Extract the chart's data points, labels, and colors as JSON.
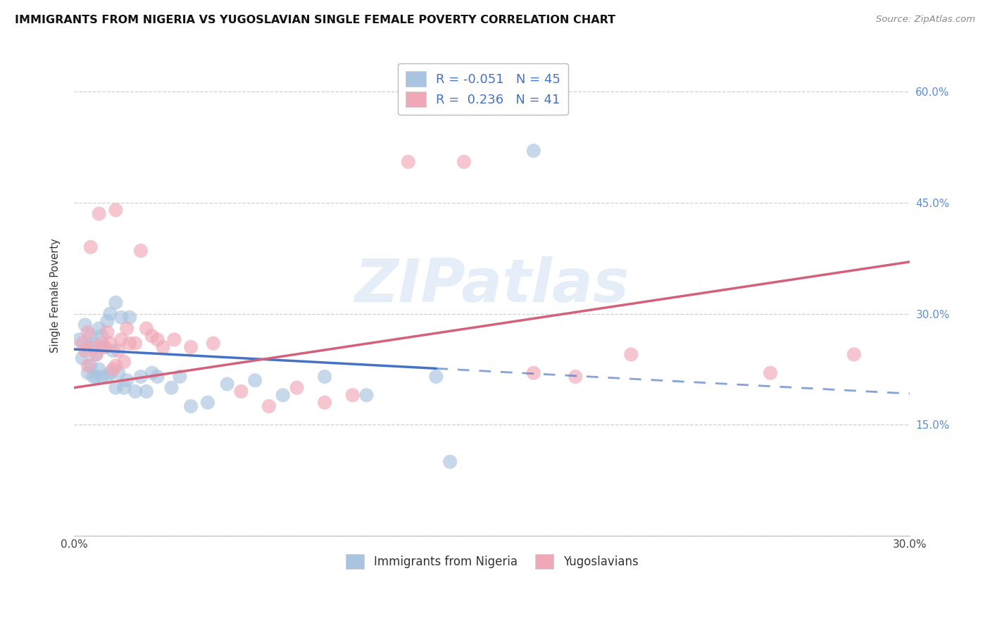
{
  "title": "IMMIGRANTS FROM NIGERIA VS YUGOSLAVIAN SINGLE FEMALE POVERTY CORRELATION CHART",
  "source": "Source: ZipAtlas.com",
  "ylabel": "Single Female Poverty",
  "xlim": [
    0.0,
    0.3
  ],
  "ylim": [
    0.0,
    0.65
  ],
  "xtick_positions": [
    0.0,
    0.05,
    0.1,
    0.15,
    0.2,
    0.25,
    0.3
  ],
  "xtick_labels": [
    "0.0%",
    "",
    "",
    "",
    "",
    "",
    "30.0%"
  ],
  "yticks_right": [
    0.15,
    0.3,
    0.45,
    0.6
  ],
  "ytick_labels_right": [
    "15.0%",
    "30.0%",
    "45.0%",
    "60.0%"
  ],
  "watermark": "ZIPatlas",
  "nigeria_color": "#a8c4e0",
  "yugoslavia_color": "#f0a8b8",
  "nigeria_line_color": "#4472c4",
  "yugoslavia_line_color": "#d4607a",
  "legend_color": "#4472c4",
  "background_color": "#ffffff",
  "grid_color": "#d0d0d0",
  "nigeria_scatter_x": [
    0.002,
    0.003,
    0.004,
    0.005,
    0.005,
    0.006,
    0.006,
    0.007,
    0.007,
    0.008,
    0.008,
    0.009,
    0.009,
    0.01,
    0.01,
    0.011,
    0.012,
    0.012,
    0.013,
    0.013,
    0.014,
    0.015,
    0.015,
    0.016,
    0.017,
    0.018,
    0.019,
    0.02,
    0.022,
    0.024,
    0.026,
    0.028,
    0.03,
    0.035,
    0.038,
    0.042,
    0.048,
    0.055,
    0.065,
    0.075,
    0.09,
    0.105,
    0.13,
    0.165,
    0.135
  ],
  "nigeria_scatter_y": [
    0.265,
    0.24,
    0.285,
    0.255,
    0.22,
    0.27,
    0.23,
    0.26,
    0.215,
    0.245,
    0.215,
    0.28,
    0.225,
    0.27,
    0.215,
    0.255,
    0.29,
    0.215,
    0.3,
    0.22,
    0.25,
    0.315,
    0.2,
    0.22,
    0.295,
    0.2,
    0.21,
    0.295,
    0.195,
    0.215,
    0.195,
    0.22,
    0.215,
    0.2,
    0.215,
    0.175,
    0.18,
    0.205,
    0.21,
    0.19,
    0.215,
    0.19,
    0.215,
    0.52,
    0.1
  ],
  "yugoslavia_scatter_x": [
    0.003,
    0.004,
    0.005,
    0.005,
    0.006,
    0.007,
    0.008,
    0.009,
    0.01,
    0.011,
    0.012,
    0.013,
    0.014,
    0.015,
    0.015,
    0.016,
    0.017,
    0.018,
    0.019,
    0.02,
    0.022,
    0.024,
    0.026,
    0.028,
    0.032,
    0.036,
    0.042,
    0.05,
    0.06,
    0.07,
    0.08,
    0.09,
    0.1,
    0.12,
    0.14,
    0.165,
    0.18,
    0.2,
    0.25,
    0.28,
    0.03
  ],
  "yugoslavia_scatter_y": [
    0.26,
    0.25,
    0.275,
    0.23,
    0.39,
    0.255,
    0.245,
    0.435,
    0.26,
    0.255,
    0.275,
    0.26,
    0.225,
    0.44,
    0.23,
    0.25,
    0.265,
    0.235,
    0.28,
    0.26,
    0.26,
    0.385,
    0.28,
    0.27,
    0.255,
    0.265,
    0.255,
    0.26,
    0.195,
    0.175,
    0.2,
    0.18,
    0.19,
    0.505,
    0.505,
    0.22,
    0.215,
    0.245,
    0.22,
    0.245,
    0.265
  ],
  "nigeria_line_x0": 0.0,
  "nigeria_line_x_solid_end": 0.13,
  "nigeria_line_x1": 0.3,
  "nigeria_line_y0": 0.252,
  "nigeria_line_y1": 0.192,
  "yugoslavia_line_x0": 0.0,
  "yugoslavia_line_x1": 0.3,
  "yugoslavia_line_y0": 0.2,
  "yugoslavia_line_y1": 0.37
}
